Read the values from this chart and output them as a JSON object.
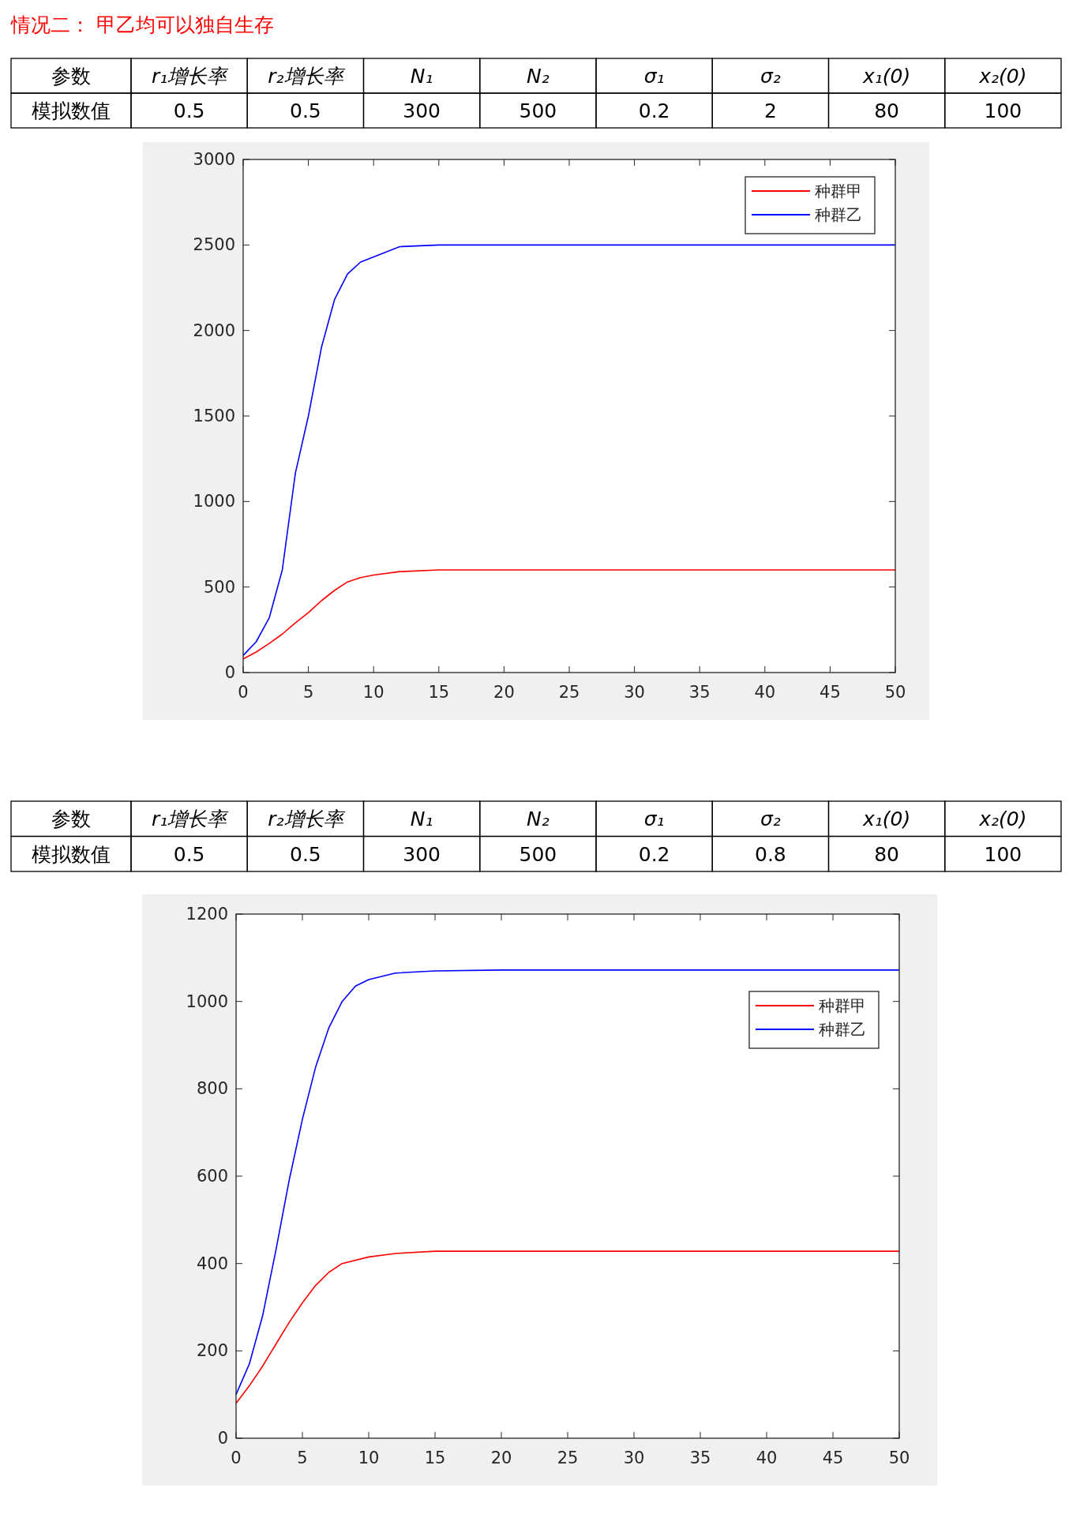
{
  "chart_data": [
    {
      "type": "other",
      "title": "情况二：  甲乙均可以独自生存",
      "categories": [
        "参数",
        "r₁增长率",
        "r₂增长率",
        "N₁",
        "N₂",
        "σ₁",
        "σ₂",
        "x₁(0)",
        "x₂(0)"
      ],
      "cell_labels": [
        [
          "模拟数值",
          "0.5",
          "0.5",
          "300",
          "500",
          "0.2",
          "2",
          "80",
          "100"
        ]
      ]
    },
    {
      "type": "line",
      "xlim": [
        0,
        50
      ],
      "ylim": [
        0,
        3000
      ],
      "xticks": [
        0,
        5,
        10,
        15,
        20,
        25,
        30,
        35,
        40,
        45,
        50
      ],
      "yticks": [
        0,
        500,
        1000,
        1500,
        2000,
        2500,
        3000
      ],
      "grid": false,
      "legend": "top right",
      "marker": "none",
      "line_style": "solid",
      "series": [
        {
          "name": "种群甲",
          "color": "#ff0000",
          "x": [
            0,
            1,
            2,
            3,
            4,
            5,
            6,
            7,
            8,
            9,
            10,
            12,
            15,
            20,
            30,
            40,
            50
          ],
          "values": [
            80,
            120,
            170,
            225,
            290,
            350,
            420,
            480,
            530,
            555,
            570,
            590,
            600,
            600,
            600,
            600,
            600
          ]
        },
        {
          "name": "种群乙",
          "color": "#0000ff",
          "x": [
            0,
            1,
            2,
            3,
            4,
            5,
            6,
            7,
            8,
            9,
            10,
            12,
            15,
            20,
            30,
            40,
            50
          ],
          "values": [
            100,
            180,
            320,
            600,
            1165,
            1500,
            1900,
            2180,
            2330,
            2400,
            2430,
            2490,
            2500,
            2500,
            2500,
            2500,
            2500
          ]
        }
      ]
    },
    {
      "type": "other",
      "categories": [
        "参数",
        "r₁增长率",
        "r₂增长率",
        "N₁",
        "N₂",
        "σ₁",
        "σ₂",
        "x₁(0)",
        "x₂(0)"
      ],
      "cell_labels": [
        [
          "模拟数值",
          "0.5",
          "0.5",
          "300",
          "500",
          "0.2",
          "0.8",
          "80",
          "100"
        ]
      ]
    },
    {
      "type": "line",
      "xlim": [
        0,
        50
      ],
      "ylim": [
        0,
        1200
      ],
      "xticks": [
        0,
        5,
        10,
        15,
        20,
        25,
        30,
        35,
        40,
        45,
        50
      ],
      "yticks": [
        0,
        200,
        400,
        600,
        800,
        1000,
        1200
      ],
      "grid": false,
      "legend": "top right",
      "marker": "none",
      "line_style": "solid",
      "series": [
        {
          "name": "种群甲",
          "color": "#ff0000",
          "x": [
            0,
            1,
            2,
            3,
            4,
            5,
            6,
            7,
            8,
            10,
            12,
            15,
            20,
            30,
            40,
            50
          ],
          "values": [
            80,
            120,
            165,
            215,
            265,
            310,
            350,
            380,
            400,
            415,
            423,
            428,
            428,
            428,
            428,
            428
          ]
        },
        {
          "name": "种群乙",
          "color": "#0000ff",
          "x": [
            0,
            1,
            2,
            3,
            4,
            5,
            6,
            7,
            8,
            9,
            10,
            12,
            15,
            20,
            30,
            40,
            50
          ],
          "values": [
            100,
            170,
            280,
            430,
            590,
            730,
            850,
            940,
            1000,
            1035,
            1050,
            1065,
            1070,
            1072,
            1072,
            1072,
            1072
          ]
        }
      ]
    }
  ]
}
